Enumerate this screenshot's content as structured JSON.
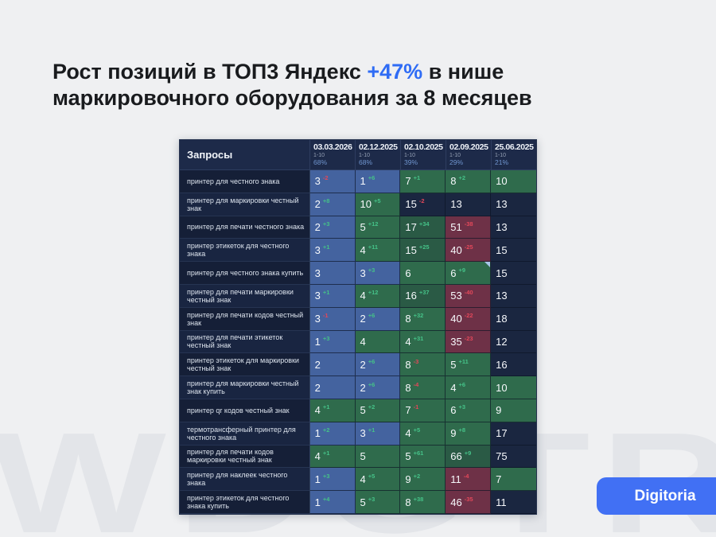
{
  "title": {
    "part1": "Рост позиций в ТОП3 Яндекс ",
    "accent": "+47%",
    "part2": " в нише",
    "line2": "маркировочного оборудования за 8 месяцев"
  },
  "watermark": "WDGTR",
  "brand": {
    "label": "Digitoria"
  },
  "colors": {
    "accent": "#2f6cf5",
    "button": "#4170f4",
    "cell_top3_blue": "#44639f",
    "cell_top10_green": "#2f6b4c",
    "cell_improved_dark_green": "#2a5a45",
    "cell_out_of_top_navy": "#1a2640",
    "cell_dropped_maroon": "#6e3147",
    "change_up_green": "#45c288",
    "change_down_red": "#e2485a"
  },
  "table": {
    "query_header": "Запросы",
    "columns": [
      {
        "date": "03.03.2026",
        "range": "1-10",
        "percent": "68%"
      },
      {
        "date": "02.12.2025",
        "range": "1-10",
        "percent": "68%"
      },
      {
        "date": "02.10.2025",
        "range": "1-10",
        "percent": "39%"
      },
      {
        "date": "02.09.2025",
        "range": "1-10",
        "percent": "29%"
      },
      {
        "date": "25.06.2025",
        "range": "1-10",
        "percent": "21%"
      }
    ],
    "rows": [
      {
        "query": "принтер для честного знака",
        "cells": [
          {
            "pos": "3",
            "chg": "-2",
            "dir": "down",
            "bg": "blue"
          },
          {
            "pos": "1",
            "chg": "+6",
            "dir": "up",
            "bg": "blue"
          },
          {
            "pos": "7",
            "chg": "+1",
            "dir": "up",
            "bg": "green"
          },
          {
            "pos": "8",
            "chg": "+2",
            "dir": "up",
            "bg": "green"
          },
          {
            "pos": "10",
            "bg": "green"
          }
        ]
      },
      {
        "query": "принтер для маркировки честный знак",
        "cells": [
          {
            "pos": "2",
            "chg": "+8",
            "dir": "up",
            "bg": "blue"
          },
          {
            "pos": "10",
            "chg": "+5",
            "dir": "up",
            "bg": "green"
          },
          {
            "pos": "15",
            "chg": "-2",
            "dir": "down",
            "bg": "navy"
          },
          {
            "pos": "13",
            "bg": "navy"
          },
          {
            "pos": "13",
            "bg": "navy"
          }
        ]
      },
      {
        "query": "принтер для печати честного знака",
        "cells": [
          {
            "pos": "2",
            "chg": "+3",
            "dir": "up",
            "bg": "blue"
          },
          {
            "pos": "5",
            "chg": "+12",
            "dir": "up",
            "bg": "green"
          },
          {
            "pos": "17",
            "chg": "+34",
            "dir": "up",
            "bg": "dgreen"
          },
          {
            "pos": "51",
            "chg": "-38",
            "dir": "down",
            "bg": "maroon"
          },
          {
            "pos": "13",
            "bg": "navy"
          }
        ]
      },
      {
        "query": "принтер этикеток для честного знака",
        "cells": [
          {
            "pos": "3",
            "chg": "+1",
            "dir": "up",
            "bg": "blue"
          },
          {
            "pos": "4",
            "chg": "+11",
            "dir": "up",
            "bg": "green"
          },
          {
            "pos": "15",
            "chg": "+25",
            "dir": "up",
            "bg": "dgreen"
          },
          {
            "pos": "40",
            "chg": "-25",
            "dir": "down",
            "bg": "maroon"
          },
          {
            "pos": "15",
            "bg": "navy"
          }
        ]
      },
      {
        "query": "принтер для честного знака купить",
        "cells": [
          {
            "pos": "3",
            "bg": "blue"
          },
          {
            "pos": "3",
            "chg": "+3",
            "dir": "up",
            "bg": "blue"
          },
          {
            "pos": "6",
            "bg": "green"
          },
          {
            "pos": "6",
            "chg": "+9",
            "dir": "up",
            "bg": "green",
            "note": true
          },
          {
            "pos": "15",
            "bg": "navy"
          }
        ]
      },
      {
        "query": "принтер для печати маркировки честный знак",
        "cells": [
          {
            "pos": "3",
            "chg": "+1",
            "dir": "up",
            "bg": "blue"
          },
          {
            "pos": "4",
            "chg": "+12",
            "dir": "up",
            "bg": "green"
          },
          {
            "pos": "16",
            "chg": "+37",
            "dir": "up",
            "bg": "dgreen"
          },
          {
            "pos": "53",
            "chg": "-40",
            "dir": "down",
            "bg": "maroon"
          },
          {
            "pos": "13",
            "bg": "navy"
          }
        ]
      },
      {
        "query": "принтер для печати кодов честный знак",
        "cells": [
          {
            "pos": "3",
            "chg": "-1",
            "dir": "down",
            "bg": "blue"
          },
          {
            "pos": "2",
            "chg": "+6",
            "dir": "up",
            "bg": "blue"
          },
          {
            "pos": "8",
            "chg": "+32",
            "dir": "up",
            "bg": "green"
          },
          {
            "pos": "40",
            "chg": "-22",
            "dir": "down",
            "bg": "maroon"
          },
          {
            "pos": "18",
            "bg": "navy"
          }
        ]
      },
      {
        "query": "принтер для печати этикеток честный знак",
        "cells": [
          {
            "pos": "1",
            "chg": "+3",
            "dir": "up",
            "bg": "blue"
          },
          {
            "pos": "4",
            "bg": "green"
          },
          {
            "pos": "4",
            "chg": "+31",
            "dir": "up",
            "bg": "green"
          },
          {
            "pos": "35",
            "chg": "-23",
            "dir": "down",
            "bg": "maroon"
          },
          {
            "pos": "12",
            "bg": "navy"
          }
        ]
      },
      {
        "query": "принтер этикеток для маркировки честный знак",
        "cells": [
          {
            "pos": "2",
            "bg": "blue"
          },
          {
            "pos": "2",
            "chg": "+6",
            "dir": "up",
            "bg": "blue"
          },
          {
            "pos": "8",
            "chg": "-3",
            "dir": "down",
            "bg": "green"
          },
          {
            "pos": "5",
            "chg": "+11",
            "dir": "up",
            "bg": "green"
          },
          {
            "pos": "16",
            "bg": "navy"
          }
        ]
      },
      {
        "query": "принтер для маркировки честный знак купить",
        "cells": [
          {
            "pos": "2",
            "bg": "blue"
          },
          {
            "pos": "2",
            "chg": "+6",
            "dir": "up",
            "bg": "blue"
          },
          {
            "pos": "8",
            "chg": "-4",
            "dir": "down",
            "bg": "green"
          },
          {
            "pos": "4",
            "chg": "+6",
            "dir": "up",
            "bg": "green"
          },
          {
            "pos": "10",
            "bg": "green"
          }
        ]
      },
      {
        "query": "принтер qr кодов честный знак",
        "cells": [
          {
            "pos": "4",
            "chg": "+1",
            "dir": "up",
            "bg": "green"
          },
          {
            "pos": "5",
            "chg": "+2",
            "dir": "up",
            "bg": "green"
          },
          {
            "pos": "7",
            "chg": "-1",
            "dir": "down",
            "bg": "green"
          },
          {
            "pos": "6",
            "chg": "+3",
            "dir": "up",
            "bg": "green"
          },
          {
            "pos": "9",
            "bg": "green"
          }
        ]
      },
      {
        "query": "термотрансферный принтер для честного знака",
        "cells": [
          {
            "pos": "1",
            "chg": "+2",
            "dir": "up",
            "bg": "blue"
          },
          {
            "pos": "3",
            "chg": "+1",
            "dir": "up",
            "bg": "blue"
          },
          {
            "pos": "4",
            "chg": "+5",
            "dir": "up",
            "bg": "green"
          },
          {
            "pos": "9",
            "chg": "+8",
            "dir": "up",
            "bg": "green"
          },
          {
            "pos": "17",
            "bg": "navy"
          }
        ]
      },
      {
        "query": "принтер для печати кодов маркировки честный знак",
        "cells": [
          {
            "pos": "4",
            "chg": "+1",
            "dir": "up",
            "bg": "green"
          },
          {
            "pos": "5",
            "bg": "green"
          },
          {
            "pos": "5",
            "chg": "+61",
            "dir": "up",
            "bg": "green"
          },
          {
            "pos": "66",
            "chg": "+9",
            "dir": "up",
            "bg": "dgreen"
          },
          {
            "pos": "75",
            "bg": "navy"
          }
        ]
      },
      {
        "query": "принтер для наклеек честного знака",
        "cells": [
          {
            "pos": "1",
            "chg": "+3",
            "dir": "up",
            "bg": "blue"
          },
          {
            "pos": "4",
            "chg": "+5",
            "dir": "up",
            "bg": "green"
          },
          {
            "pos": "9",
            "chg": "+2",
            "dir": "up",
            "bg": "green"
          },
          {
            "pos": "11",
            "chg": "-4",
            "dir": "down",
            "bg": "maroon"
          },
          {
            "pos": "7",
            "bg": "green"
          }
        ]
      },
      {
        "query": "принтер этикеток для честного знака купить",
        "cells": [
          {
            "pos": "1",
            "chg": "+4",
            "dir": "up",
            "bg": "blue"
          },
          {
            "pos": "5",
            "chg": "+3",
            "dir": "up",
            "bg": "green"
          },
          {
            "pos": "8",
            "chg": "+38",
            "dir": "up",
            "bg": "green"
          },
          {
            "pos": "46",
            "chg": "-35",
            "dir": "down",
            "bg": "maroon"
          },
          {
            "pos": "11",
            "bg": "navy"
          }
        ]
      }
    ]
  }
}
